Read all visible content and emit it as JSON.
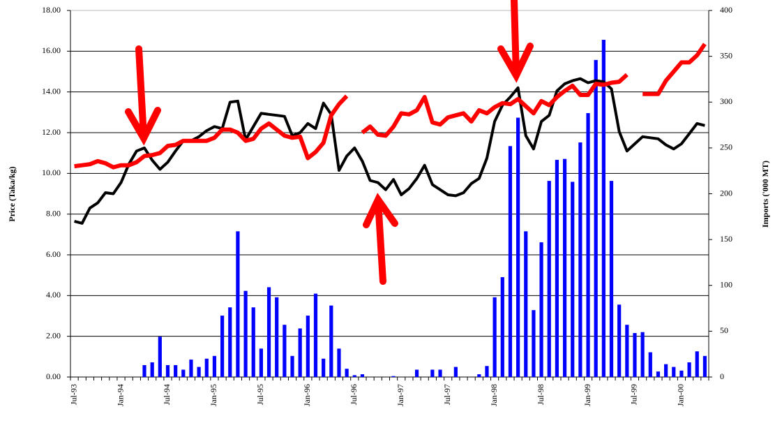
{
  "chart_data": {
    "type": "bar",
    "y_label": "Price (Taka/kg)",
    "y2_label": "Imports ('000 MT)",
    "categories": [
      "Jul-93",
      null,
      null,
      null,
      null,
      null,
      "Jan-94",
      null,
      null,
      null,
      null,
      null,
      "Jul-94",
      null,
      null,
      null,
      null,
      null,
      "Jan-95",
      null,
      null,
      null,
      null,
      null,
      "Jul-95",
      null,
      null,
      null,
      null,
      null,
      "Jan-96",
      null,
      null,
      null,
      null,
      null,
      "Jul-96",
      null,
      null,
      null,
      null,
      null,
      "Jan-97",
      null,
      null,
      null,
      null,
      null,
      "Jul-97",
      null,
      null,
      null,
      null,
      null,
      "Jan-98",
      null,
      null,
      null,
      null,
      null,
      "Jul-98",
      null,
      null,
      null,
      null,
      null,
      "Jan-99",
      null,
      null,
      null,
      null,
      null,
      "Jul-99",
      null,
      null,
      null,
      null,
      null,
      "Jan-00",
      null,
      null,
      null
    ],
    "ylim": [
      0,
      18
    ],
    "yticks": [
      {
        "value": 0,
        "label": "0.00"
      },
      {
        "value": 2,
        "label": "2.00"
      },
      {
        "value": 4,
        "label": "4.00"
      },
      {
        "value": 6,
        "label": "6.00"
      },
      {
        "value": 8,
        "label": "8.00"
      },
      {
        "value": 10,
        "label": "10.00"
      },
      {
        "value": 12,
        "label": "12.00"
      },
      {
        "value": 14,
        "label": "14.00"
      },
      {
        "value": 16,
        "label": "16.00"
      },
      {
        "value": 18,
        "label": "18.00"
      }
    ],
    "y2lim": [
      0,
      400
    ],
    "y2ticks": [
      0,
      50,
      100,
      150,
      200,
      250,
      300,
      350,
      400
    ],
    "grid": true,
    "series": [
      {
        "type": "bar",
        "axis": "y2",
        "color": "#0000ff",
        "values": [
          0,
          0,
          0,
          0,
          0,
          0,
          0,
          0,
          0,
          13,
          16,
          44,
          13,
          13,
          8,
          19,
          11,
          20,
          23,
          67,
          76,
          159,
          94,
          76,
          31,
          98,
          87,
          57,
          23,
          53,
          67,
          91,
          20,
          78,
          31,
          9,
          2,
          3,
          0,
          0,
          0,
          1,
          0,
          0,
          8,
          0,
          8,
          8,
          0,
          11,
          0,
          0,
          3,
          12,
          87,
          109,
          252,
          283,
          159,
          73,
          147,
          214,
          237,
          238,
          213,
          256,
          288,
          346,
          368,
          214,
          79,
          57,
          48,
          49,
          27,
          6,
          14,
          11,
          7,
          16,
          28,
          23
        ]
      },
      {
        "type": "line",
        "color": "#000000",
        "values": [
          7.65,
          7.55,
          8.3,
          8.55,
          9.05,
          9.0,
          9.55,
          10.45,
          11.1,
          11.25,
          10.65,
          10.2,
          10.55,
          11.1,
          11.6,
          11.6,
          11.8,
          12.1,
          12.3,
          12.2,
          13.5,
          13.55,
          11.65,
          12.3,
          12.95,
          12.9,
          12.85,
          12.8,
          11.85,
          12.0,
          12.45,
          12.2,
          13.45,
          12.9,
          10.15,
          10.85,
          11.25,
          10.6,
          9.65,
          9.55,
          9.2,
          9.7,
          8.95,
          9.25,
          9.75,
          10.4,
          9.45,
          9.2,
          8.95,
          8.9,
          9.05,
          9.5,
          9.75,
          10.75,
          12.55,
          13.35,
          13.75,
          14.2,
          11.85,
          11.2,
          12.55,
          12.85,
          14.05,
          14.4,
          14.55,
          14.65,
          14.45,
          14.55,
          14.5,
          14.15,
          12.05,
          11.1,
          11.45,
          11.8,
          11.75,
          11.7,
          11.4,
          11.2,
          11.45,
          11.95,
          12.45,
          12.35
        ]
      },
      {
        "type": "line",
        "color": "#ff0000",
        "values": [
          10.35,
          10.4,
          10.45,
          10.6,
          10.5,
          10.3,
          10.4,
          10.4,
          10.55,
          10.85,
          10.9,
          11.0,
          11.35,
          11.4,
          11.6,
          11.6,
          11.6,
          11.6,
          11.75,
          12.15,
          12.15,
          12.0,
          11.6,
          11.7,
          12.2,
          12.45,
          12.15,
          11.85,
          11.75,
          11.8,
          10.75,
          11.05,
          11.5,
          12.85,
          13.4,
          13.8,
          null,
          12.0,
          12.3,
          11.9,
          11.85,
          12.3,
          12.95,
          12.9,
          13.1,
          13.75,
          12.5,
          12.4,
          12.75,
          12.85,
          12.95,
          12.55,
          13.1,
          12.95,
          13.25,
          13.45,
          13.4,
          13.65,
          13.3,
          12.95,
          13.55,
          13.35,
          13.75,
          14.05,
          14.3,
          13.85,
          13.85,
          14.4,
          14.35,
          14.45,
          14.5,
          14.85,
          null,
          13.9,
          13.9,
          13.9,
          14.55,
          15.0,
          15.45,
          15.45,
          15.8,
          16.35
        ]
      }
    ]
  }
}
